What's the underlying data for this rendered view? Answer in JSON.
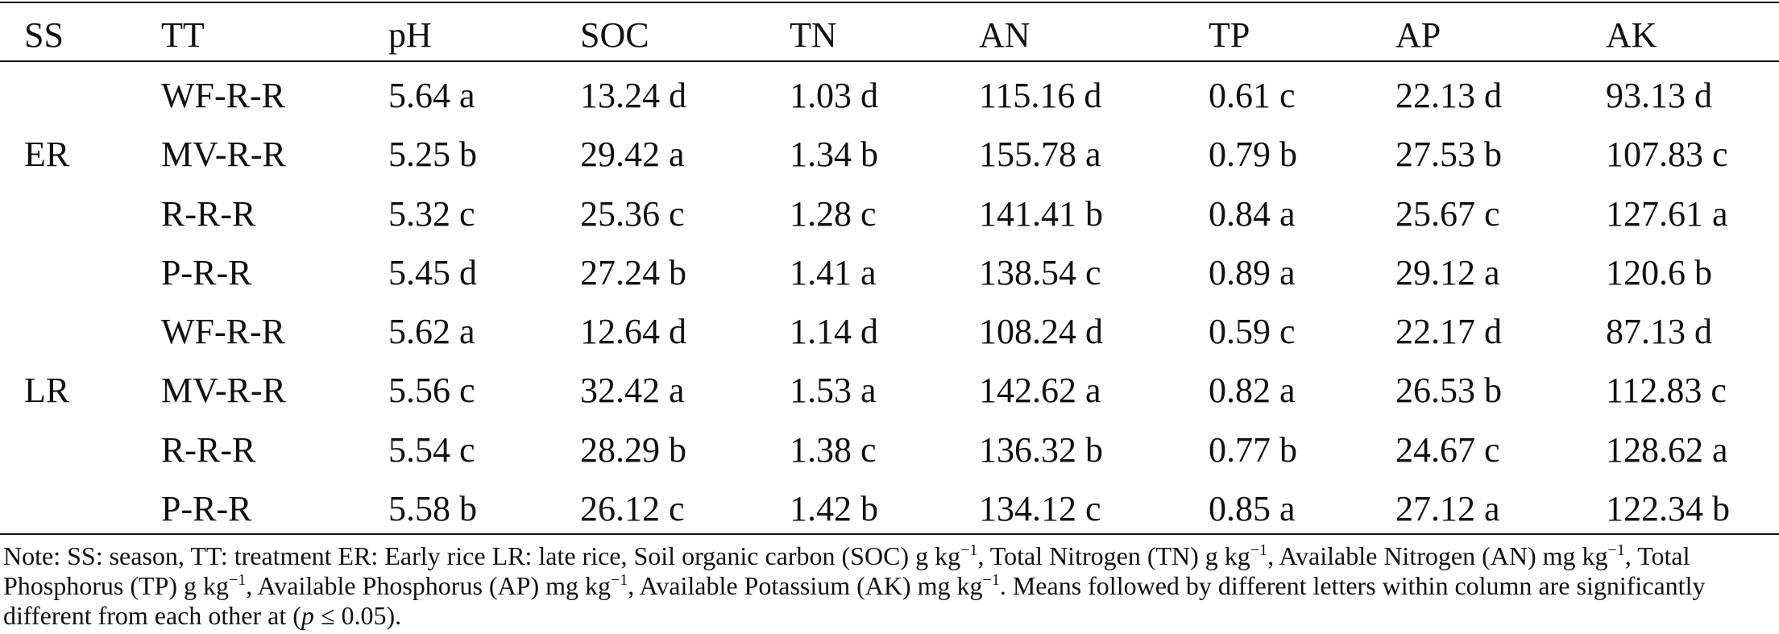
{
  "table": {
    "headers": [
      "SS",
      "TT",
      "pH",
      "SOC",
      "TN",
      "AN",
      "TP",
      "AP",
      "AK"
    ],
    "groups": [
      {
        "season": "ER",
        "rows": [
          [
            "WF-R-R",
            "5.64 a",
            "13.24 d",
            "1.03 d",
            "115.16 d",
            "0.61 c",
            "22.13 d",
            "93.13 d"
          ],
          [
            "MV-R-R",
            "5.25 b",
            "29.42 a",
            "1.34 b",
            "155.78 a",
            "0.79 b",
            "27.53 b",
            "107.83 c"
          ],
          [
            "R-R-R",
            "5.32 c",
            "25.36 c",
            "1.28 c",
            "141.41 b",
            "0.84 a",
            "25.67 c",
            "127.61 a"
          ],
          [
            "P-R-R",
            "5.45 d",
            "27.24 b",
            "1.41 a",
            "138.54 c",
            "0.89 a",
            "29.12 a",
            "120.6 b"
          ]
        ]
      },
      {
        "season": "LR",
        "rows": [
          [
            "WF-R-R",
            "5.62 a",
            "12.64 d",
            "1.14 d",
            "108.24 d",
            "0.59 c",
            "22.17 d",
            "87.13 d"
          ],
          [
            "MV-R-R",
            "5.56 c",
            "32.42 a",
            "1.53 a",
            "142.62 a",
            "0.82 a",
            "26.53 b",
            "112.83 c"
          ],
          [
            "R-R-R",
            "5.54 c",
            "28.29 b",
            "1.38 c",
            "136.32 b",
            "0.77 b",
            "24.67 c",
            "128.62 a"
          ],
          [
            "P-R-R",
            "5.58 b",
            "26.12 c",
            "1.42 b",
            "134.12 c",
            "0.85 a",
            "27.12 a",
            "122.34 b"
          ]
        ]
      }
    ]
  },
  "note": {
    "p1": "Note: SS: season, TT: treatment ER: Early rice LR: late rice, Soil organic carbon (SOC) g kg",
    "sup": "−1",
    "p2": ", Total Nitrogen (TN) g kg",
    "p3": ", Available Nitrogen (AN) mg kg",
    "p4": ", Total Phosphorus (TP) g kg",
    "p5": ", Available Phosphorus (AP) mg kg",
    "p6": ", Available Potassium (AK) mg kg",
    "p7": ". Means followed by different letters within column are significantly different from each other at (",
    "p_italic": "p",
    "p8": " ≤ 0.05)."
  }
}
